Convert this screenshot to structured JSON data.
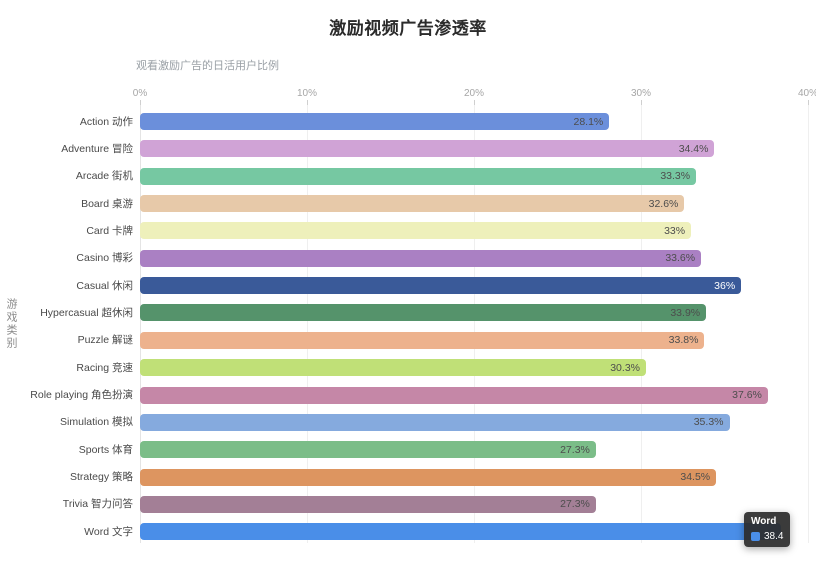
{
  "title": "激励视频广告渗透率",
  "subtitle": "观看激励广告的日活用户比例",
  "y_axis_name": "游戏类别",
  "tooltip": {
    "title": "Word",
    "value": "38.4",
    "swatch_color": "#4a8ee8"
  },
  "chart_data": {
    "type": "bar",
    "orientation": "horizontal",
    "title": "激励视频广告渗透率",
    "subtitle": "观看激励广告的日活用户比例",
    "ylabel": "游戏类别",
    "xlabel": "",
    "xlim": [
      0,
      40
    ],
    "x_ticks": [
      "0%",
      "10%",
      "20%",
      "30%",
      "40%"
    ],
    "x_tick_values": [
      0,
      10,
      20,
      30,
      40
    ],
    "grid": true,
    "legend": false,
    "categories": [
      "Action 动作",
      "Adventure 冒险",
      "Arcade 街机",
      "Board 桌游",
      "Card 卡牌",
      "Casino 博彩",
      "Casual 休闲",
      "Hypercasual 超休闲",
      "Puzzle 解谜",
      "Racing 竞速",
      "Role playing 角色扮演",
      "Simulation 模拟",
      "Sports 体育",
      "Strategy 策略",
      "Trivia 智力问答",
      "Word 文字"
    ],
    "values": [
      28.1,
      34.4,
      33.3,
      32.6,
      33,
      33.6,
      36,
      33.9,
      33.8,
      30.3,
      37.6,
      35.3,
      27.3,
      34.5,
      27.3,
      38.4
    ],
    "value_labels": [
      "28.1%",
      "34.4%",
      "33.3%",
      "32.6%",
      "33%",
      "33.6%",
      "36%",
      "33.9%",
      "33.8%",
      "30.3%",
      "37.6%",
      "35.3%",
      "27.3%",
      "34.5%",
      "27.3%",
      null
    ],
    "label_colors": [
      "#4d4d4d",
      "#4d4d4d",
      "#4d4d4d",
      "#4d4d4d",
      "#4d4d4d",
      "#4d4d4d",
      "#ffffff",
      "#4d4d4d",
      "#4d4d4d",
      "#4d4d4d",
      "#4d4d4d",
      "#4d4d4d",
      "#4d4d4d",
      "#4d4d4d",
      "#4d4d4d",
      null
    ],
    "colors": [
      "#6b8fdb",
      "#d0a3d6",
      "#76c8a2",
      "#e7c9a9",
      "#eef0bb",
      "#aa80c3",
      "#3a5a99",
      "#55936b",
      "#edb28d",
      "#c0e077",
      "#c587a7",
      "#85aade",
      "#7bbd88",
      "#dd9560",
      "#a37f96",
      "#4a8ee8"
    ]
  }
}
